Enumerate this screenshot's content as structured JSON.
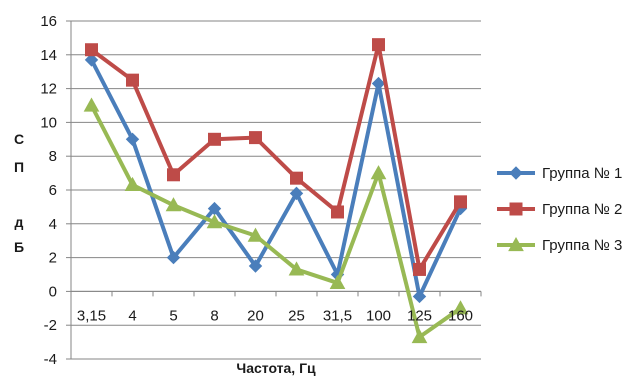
{
  "chart_data": {
    "type": "line",
    "title": "",
    "xlabel": "Частота, Гц",
    "ylabel_parts": [
      "С",
      "П",
      "д",
      "Б"
    ],
    "categories": [
      "3,15",
      "4",
      "5",
      "8",
      "20",
      "25",
      "31,5",
      "100",
      "125",
      "160"
    ],
    "ylim": [
      -4,
      16
    ],
    "yticks": [
      -4,
      -2,
      0,
      2,
      4,
      6,
      8,
      10,
      12,
      14,
      16
    ],
    "grid": true,
    "legend_position": "right",
    "series": [
      {
        "name": "Группа № 1",
        "color": "#4a7ebb",
        "marker": "diamond",
        "values": [
          13.7,
          9.0,
          2.0,
          4.9,
          1.5,
          5.8,
          1.0,
          12.3,
          -0.3,
          4.9
        ]
      },
      {
        "name": "Группа № 2",
        "color": "#be4b48",
        "marker": "square",
        "values": [
          14.3,
          12.5,
          6.9,
          9.0,
          9.1,
          6.7,
          4.7,
          14.6,
          1.3,
          5.3
        ]
      },
      {
        "name": "Группа № 3",
        "color": "#98b954",
        "marker": "triangle",
        "values": [
          11.0,
          6.3,
          5.1,
          4.1,
          3.3,
          1.3,
          0.5,
          7.0,
          -2.7,
          -1.0
        ]
      }
    ]
  }
}
